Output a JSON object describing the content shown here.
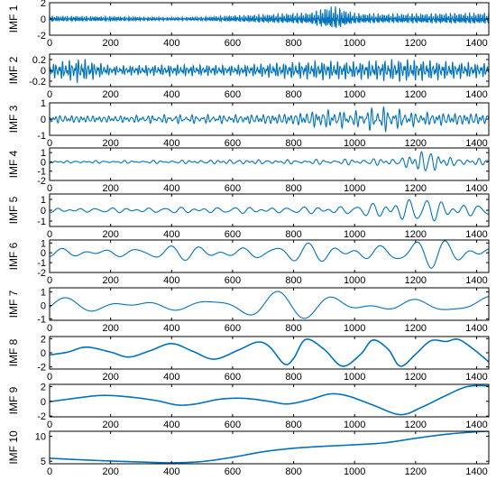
{
  "colors": {
    "line": "#0072BD",
    "axes": "#000000",
    "background": "#ffffff"
  },
  "chart_data": [
    {
      "type": "line",
      "ylabel": "IMF 1",
      "xlim": [
        0,
        1440
      ],
      "ylim": [
        -2,
        2
      ],
      "xticks": [
        "0",
        "200",
        "400",
        "600",
        "800",
        "1000",
        "1200",
        "1400"
      ],
      "yticks": [
        {
          "v": 2,
          "label": "2"
        },
        {
          "v": 0,
          "label": "0"
        },
        {
          "v": -2,
          "label": "-2"
        }
      ],
      "series": [
        {
          "kind": "noise",
          "freq": [
            0.9,
            1.3,
            1.8
          ],
          "amp": [
            [
              0,
              0.35
            ],
            [
              200,
              0.3
            ],
            [
              400,
              0.2
            ],
            [
              500,
              0.25
            ],
            [
              700,
              0.55
            ],
            [
              850,
              0.75
            ],
            [
              930,
              1.6
            ],
            [
              1000,
              0.7
            ],
            [
              1100,
              0.6
            ],
            [
              1300,
              0.7
            ],
            [
              1440,
              0.75
            ]
          ]
        }
      ]
    },
    {
      "type": "line",
      "ylabel": "IMF 2",
      "xlim": [
        0,
        1440
      ],
      "ylim": [
        -0.3,
        0.3
      ],
      "xticks": [
        "0",
        "200",
        "400",
        "600",
        "800",
        "1000",
        "1200",
        "1400"
      ],
      "yticks": [
        {
          "v": 0.2,
          "label": "0.2"
        },
        {
          "v": 0,
          "label": "0"
        },
        {
          "v": -0.2,
          "label": "-0.2"
        }
      ],
      "series": [
        {
          "kind": "noise",
          "freq": [
            0.6,
            0.85,
            1.1
          ],
          "amp": [
            [
              0,
              0.12
            ],
            [
              100,
              0.22
            ],
            [
              200,
              0.08
            ],
            [
              400,
              0.1
            ],
            [
              600,
              0.09
            ],
            [
              700,
              0.12
            ],
            [
              900,
              0.17
            ],
            [
              1000,
              0.15
            ],
            [
              1150,
              0.2
            ],
            [
              1300,
              0.16
            ],
            [
              1440,
              0.12
            ]
          ]
        }
      ]
    },
    {
      "type": "line",
      "ylabel": "IMF 3",
      "xlim": [
        0,
        1440
      ],
      "ylim": [
        -1,
        1
      ],
      "xticks": [
        "0",
        "200",
        "400",
        "600",
        "800",
        "1000",
        "1200",
        "1400"
      ],
      "yticks": [
        {
          "v": 1,
          "label": "1"
        },
        {
          "v": 0,
          "label": "0"
        },
        {
          "v": -1,
          "label": "-1"
        }
      ],
      "series": [
        {
          "kind": "noise",
          "freq": [
            0.35,
            0.48,
            0.62
          ],
          "amp": [
            [
              0,
              0.25
            ],
            [
              200,
              0.2
            ],
            [
              400,
              0.25
            ],
            [
              600,
              0.25
            ],
            [
              800,
              0.35
            ],
            [
              900,
              0.55
            ],
            [
              1000,
              0.45
            ],
            [
              1080,
              0.75
            ],
            [
              1200,
              0.4
            ],
            [
              1440,
              0.35
            ]
          ]
        }
      ]
    },
    {
      "type": "line",
      "ylabel": "IMF 4",
      "xlim": [
        0,
        1440
      ],
      "ylim": [
        -2,
        1.5
      ],
      "xticks": [
        "0",
        "200",
        "400",
        "600",
        "800",
        "1000",
        "1200",
        "1400"
      ],
      "yticks": [
        {
          "v": 1,
          "label": "1"
        },
        {
          "v": 0,
          "label": "0"
        },
        {
          "v": -1,
          "label": "-1"
        },
        {
          "v": -2,
          "label": "-2"
        }
      ],
      "series": [
        {
          "kind": "noise",
          "freq": [
            0.2,
            0.27,
            0.33
          ],
          "amp": [
            [
              0,
              0.12
            ],
            [
              300,
              0.15
            ],
            [
              500,
              0.2
            ],
            [
              600,
              0.25
            ],
            [
              800,
              0.22
            ],
            [
              1000,
              0.3
            ],
            [
              1150,
              0.4
            ],
            [
              1240,
              1.5
            ],
            [
              1300,
              0.5
            ],
            [
              1440,
              0.3
            ]
          ]
        }
      ]
    },
    {
      "type": "line",
      "ylabel": "IMF 5",
      "xlim": [
        0,
        1440
      ],
      "ylim": [
        -1.5,
        1.5
      ],
      "xticks": [
        "0",
        "200",
        "400",
        "600",
        "800",
        "1000",
        "1200",
        "1400"
      ],
      "yticks": [
        {
          "v": 1,
          "label": "1"
        },
        {
          "v": 0,
          "label": "0"
        },
        {
          "v": -1,
          "label": "-1"
        }
      ],
      "series": [
        {
          "kind": "noise",
          "freq": [
            0.11,
            0.14,
            0.17
          ],
          "amp": [
            [
              0,
              0.2
            ],
            [
              300,
              0.25
            ],
            [
              500,
              0.3
            ],
            [
              800,
              0.3
            ],
            [
              1000,
              0.45
            ],
            [
              1100,
              0.8
            ],
            [
              1200,
              1.4
            ],
            [
              1300,
              0.8
            ],
            [
              1440,
              0.55
            ]
          ]
        }
      ]
    },
    {
      "type": "line",
      "ylabel": "IMF 6",
      "xlim": [
        0,
        1440
      ],
      "ylim": [
        -2,
        1.3
      ],
      "xticks": [
        "0",
        "200",
        "400",
        "600",
        "800",
        "1000",
        "1200",
        "1400"
      ],
      "yticks": [
        {
          "v": 1,
          "label": "1"
        },
        {
          "v": 0,
          "label": "0"
        },
        {
          "v": -1,
          "label": "-1"
        },
        {
          "v": -2,
          "label": "-2"
        }
      ],
      "series": [
        {
          "kind": "noise",
          "freq": [
            0.055,
            0.07,
            0.085
          ],
          "amp": [
            [
              0,
              0.4
            ],
            [
              200,
              0.6
            ],
            [
              400,
              0.7
            ],
            [
              600,
              0.8
            ],
            [
              800,
              0.9
            ],
            [
              1000,
              1.0
            ],
            [
              1150,
              1.3
            ],
            [
              1250,
              1.5
            ],
            [
              1300,
              1.2
            ],
            [
              1440,
              0.9
            ]
          ]
        }
      ]
    },
    {
      "type": "line",
      "ylabel": "IMF 7",
      "xlim": [
        0,
        1440
      ],
      "ylim": [
        -1.1,
        1.3
      ],
      "xticks": [
        "0",
        "200",
        "400",
        "600",
        "800",
        "1000",
        "1200",
        "1400"
      ],
      "yticks": [
        {
          "v": 1,
          "label": "1"
        },
        {
          "v": 0,
          "label": "0"
        },
        {
          "v": -1,
          "label": "-1"
        }
      ],
      "series": [
        {
          "kind": "noise",
          "freq": [
            0.028,
            0.036,
            0.044
          ],
          "amp": [
            [
              0,
              0.5
            ],
            [
              200,
              0.6
            ],
            [
              400,
              0.7
            ],
            [
              700,
              1.0
            ],
            [
              800,
              0.9
            ],
            [
              1000,
              0.8
            ],
            [
              1200,
              0.9
            ],
            [
              1440,
              0.9
            ]
          ]
        }
      ]
    },
    {
      "type": "line",
      "ylabel": "IMF 8",
      "xlim": [
        0,
        1440
      ],
      "ylim": [
        -2.3,
        2.3
      ],
      "xticks": [
        "0",
        "200",
        "400",
        "600",
        "800",
        "1000",
        "1200",
        "1400"
      ],
      "yticks": [
        {
          "v": 2,
          "label": "2"
        },
        {
          "v": 0,
          "label": "0"
        },
        {
          "v": -2,
          "label": "-2"
        }
      ],
      "series": [
        {
          "kind": "wave",
          "points": [
            [
              0,
              -0.3
            ],
            [
              60,
              0.1
            ],
            [
              120,
              0.8
            ],
            [
              200,
              0.1
            ],
            [
              260,
              -0.6
            ],
            [
              330,
              0.3
            ],
            [
              400,
              1.3
            ],
            [
              470,
              0.2
            ],
            [
              540,
              -0.9
            ],
            [
              620,
              0.4
            ],
            [
              680,
              1.5
            ],
            [
              720,
              0.9
            ],
            [
              770,
              -1.6
            ],
            [
              800,
              -0.8
            ],
            [
              840,
              1.9
            ],
            [
              900,
              0.5
            ],
            [
              960,
              -1.9
            ],
            [
              1020,
              -0.2
            ],
            [
              1060,
              1.8
            ],
            [
              1110,
              0.5
            ],
            [
              1150,
              -1.9
            ],
            [
              1200,
              -0.2
            ],
            [
              1250,
              1.7
            ],
            [
              1300,
              1.6
            ],
            [
              1340,
              1.9
            ],
            [
              1390,
              0.5
            ],
            [
              1440,
              -1.3
            ]
          ]
        }
      ]
    },
    {
      "type": "line",
      "ylabel": "IMF 9",
      "xlim": [
        0,
        1440
      ],
      "ylim": [
        -2.1,
        2.3
      ],
      "xticks": [
        "0",
        "200",
        "400",
        "600",
        "800",
        "1000",
        "1200",
        "1400"
      ],
      "yticks": [
        {
          "v": 2,
          "label": "2"
        },
        {
          "v": 0,
          "label": "0"
        },
        {
          "v": -2,
          "label": "-2"
        }
      ],
      "series": [
        {
          "kind": "wave",
          "points": [
            [
              0,
              -0.05
            ],
            [
              80,
              0.4
            ],
            [
              170,
              0.8
            ],
            [
              260,
              0.6
            ],
            [
              350,
              0.1
            ],
            [
              420,
              -0.5
            ],
            [
              480,
              -0.35
            ],
            [
              560,
              0.3
            ],
            [
              640,
              0.4
            ],
            [
              720,
              0.0
            ],
            [
              780,
              -0.35
            ],
            [
              850,
              0.2
            ],
            [
              920,
              1.0
            ],
            [
              980,
              0.7
            ],
            [
              1060,
              -0.5
            ],
            [
              1150,
              -1.8
            ],
            [
              1220,
              -0.8
            ],
            [
              1300,
              0.8
            ],
            [
              1370,
              2.0
            ],
            [
              1440,
              2.1
            ]
          ]
        }
      ]
    },
    {
      "type": "line",
      "ylabel": "IMF 10",
      "xlim": [
        0,
        1440
      ],
      "ylim": [
        4.5,
        11
      ],
      "xticks": [
        "0",
        "200",
        "400",
        "600",
        "800",
        "1000",
        "1200",
        "1400"
      ],
      "yticks": [
        {
          "v": 10,
          "label": "10"
        },
        {
          "v": 5,
          "label": "5"
        }
      ],
      "series": [
        {
          "kind": "wave",
          "points": [
            [
              0,
              5.6
            ],
            [
              100,
              5.3
            ],
            [
              200,
              5.05
            ],
            [
              300,
              4.85
            ],
            [
              400,
              4.7
            ],
            [
              500,
              4.95
            ],
            [
              600,
              5.8
            ],
            [
              700,
              6.9
            ],
            [
              800,
              7.6
            ],
            [
              900,
              8.0
            ],
            [
              1000,
              8.3
            ],
            [
              1100,
              8.7
            ],
            [
              1200,
              9.6
            ],
            [
              1300,
              10.4
            ],
            [
              1400,
              10.9
            ],
            [
              1440,
              11.0
            ]
          ]
        }
      ]
    }
  ]
}
